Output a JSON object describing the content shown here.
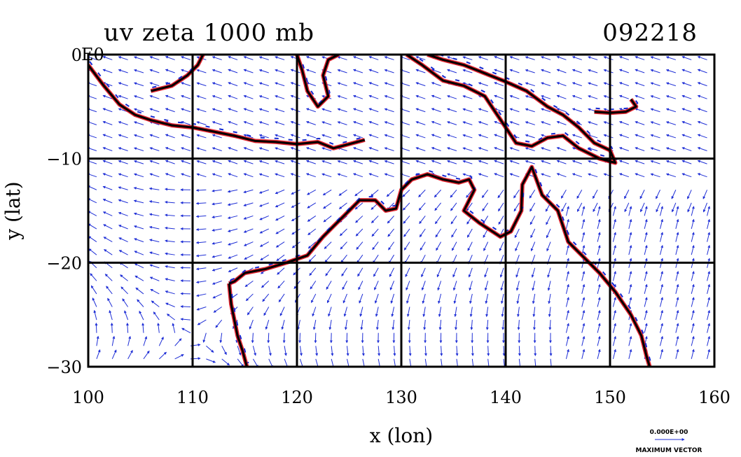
{
  "chart_data": {
    "type": "vector-field-map",
    "title": "uv zeta 1000 mb",
    "date_code": "092218",
    "xlabel": "x (lon)",
    "ylabel": "y (lat)",
    "xlim": [
      100,
      160
    ],
    "ylim": [
      -30,
      0
    ],
    "x_ticks": [
      100,
      110,
      120,
      130,
      140,
      150,
      160
    ],
    "y_ticks": [
      0,
      -10,
      -20,
      -30
    ],
    "y_tick_labels": [
      "0",
      "−10",
      "−20",
      "−30"
    ],
    "top_tick_note": "E0",
    "grid": true,
    "grid_interval_deg": 10,
    "vector_color": "#1f2fd6",
    "vorticity_positive_color": "#e0101b",
    "vorticity_negative_color": "#1428d0",
    "coastline_color": "#000000",
    "legend": {
      "scale_label": "0.000E+00",
      "caption": "MAXIMUM VECTOR",
      "placement": "bottom-right"
    },
    "coastlines": [
      {
        "name": "sumatra-java",
        "points": [
          [
            100.0,
            -1.0
          ],
          [
            101.5,
            -3.0
          ],
          [
            103.0,
            -4.8
          ],
          [
            104.5,
            -5.8
          ],
          [
            106.0,
            -6.3
          ],
          [
            108.0,
            -6.8
          ],
          [
            110.0,
            -7.0
          ],
          [
            112.0,
            -7.4
          ],
          [
            114.0,
            -7.8
          ],
          [
            116.0,
            -8.3
          ],
          [
            118.0,
            -8.4
          ],
          [
            120.0,
            -8.6
          ],
          [
            122.0,
            -8.4
          ],
          [
            123.5,
            -9.0
          ],
          [
            125.0,
            -8.6
          ],
          [
            126.5,
            -8.2
          ]
        ]
      },
      {
        "name": "borneo",
        "points": [
          [
            106.0,
            -3.5
          ],
          [
            108.0,
            -3.0
          ],
          [
            109.5,
            -2.0
          ],
          [
            110.5,
            -1.0
          ],
          [
            111.0,
            0.0
          ]
        ]
      },
      {
        "name": "sulawesi",
        "points": [
          [
            120.0,
            0.0
          ],
          [
            120.5,
            -1.5
          ],
          [
            121.0,
            -3.5
          ],
          [
            122.0,
            -5.0
          ],
          [
            123.0,
            -4.0
          ],
          [
            122.5,
            -2.0
          ],
          [
            123.0,
            -0.5
          ],
          [
            124.0,
            0.0
          ]
        ]
      },
      {
        "name": "new-guinea",
        "points": [
          [
            130.5,
            0.0
          ],
          [
            132.0,
            -1.0
          ],
          [
            134.0,
            -2.5
          ],
          [
            136.0,
            -3.0
          ],
          [
            138.0,
            -4.0
          ],
          [
            139.0,
            -5.5
          ],
          [
            140.0,
            -7.0
          ],
          [
            141.0,
            -8.5
          ],
          [
            142.5,
            -8.8
          ],
          [
            144.0,
            -8.0
          ],
          [
            145.5,
            -7.8
          ],
          [
            147.0,
            -9.0
          ],
          [
            149.0,
            -10.0
          ],
          [
            150.5,
            -10.4
          ],
          [
            150.0,
            -9.2
          ],
          [
            148.5,
            -8.5
          ],
          [
            147.0,
            -7.0
          ],
          [
            145.5,
            -5.8
          ],
          [
            144.0,
            -5.0
          ],
          [
            142.0,
            -3.5
          ],
          [
            140.0,
            -2.6
          ],
          [
            138.0,
            -1.8
          ],
          [
            136.0,
            -1.0
          ],
          [
            134.0,
            -0.5
          ],
          [
            132.5,
            0.0
          ]
        ]
      },
      {
        "name": "new-britain",
        "points": [
          [
            148.5,
            -5.5
          ],
          [
            150.0,
            -5.6
          ],
          [
            151.5,
            -5.5
          ],
          [
            152.5,
            -5.0
          ],
          [
            152.0,
            -4.3
          ]
        ]
      },
      {
        "name": "australia",
        "points": [
          [
            113.5,
            -22.0
          ],
          [
            114.0,
            -21.8
          ],
          [
            115.0,
            -21.0
          ],
          [
            117.0,
            -20.6
          ],
          [
            119.0,
            -20.0
          ],
          [
            121.0,
            -19.3
          ],
          [
            122.5,
            -17.5
          ],
          [
            123.5,
            -16.5
          ],
          [
            124.5,
            -15.5
          ],
          [
            126.0,
            -14.0
          ],
          [
            127.5,
            -14.0
          ],
          [
            128.5,
            -15.0
          ],
          [
            129.5,
            -14.8
          ],
          [
            130.0,
            -13.0
          ],
          [
            131.0,
            -12.0
          ],
          [
            132.5,
            -11.5
          ],
          [
            134.0,
            -12.0
          ],
          [
            135.5,
            -12.3
          ],
          [
            136.5,
            -12.0
          ],
          [
            137.0,
            -13.0
          ],
          [
            136.0,
            -15.0
          ],
          [
            137.5,
            -16.2
          ],
          [
            139.5,
            -17.5
          ],
          [
            140.5,
            -17.0
          ],
          [
            141.5,
            -15.0
          ],
          [
            141.6,
            -12.5
          ],
          [
            142.5,
            -10.8
          ],
          [
            143.5,
            -13.5
          ],
          [
            145.0,
            -15.0
          ],
          [
            146.0,
            -18.0
          ],
          [
            147.5,
            -19.5
          ],
          [
            149.0,
            -21.0
          ],
          [
            150.5,
            -22.8
          ],
          [
            152.0,
            -25.0
          ],
          [
            153.0,
            -27.0
          ],
          [
            153.5,
            -29.0
          ],
          [
            153.8,
            -30.0
          ]
        ]
      },
      {
        "name": "west-coast",
        "points": [
          [
            113.5,
            -22.0
          ],
          [
            113.7,
            -24.0
          ],
          [
            114.0,
            -25.5
          ],
          [
            114.3,
            -27.0
          ],
          [
            114.8,
            -28.5
          ],
          [
            115.2,
            -30.0
          ]
        ]
      }
    ]
  }
}
